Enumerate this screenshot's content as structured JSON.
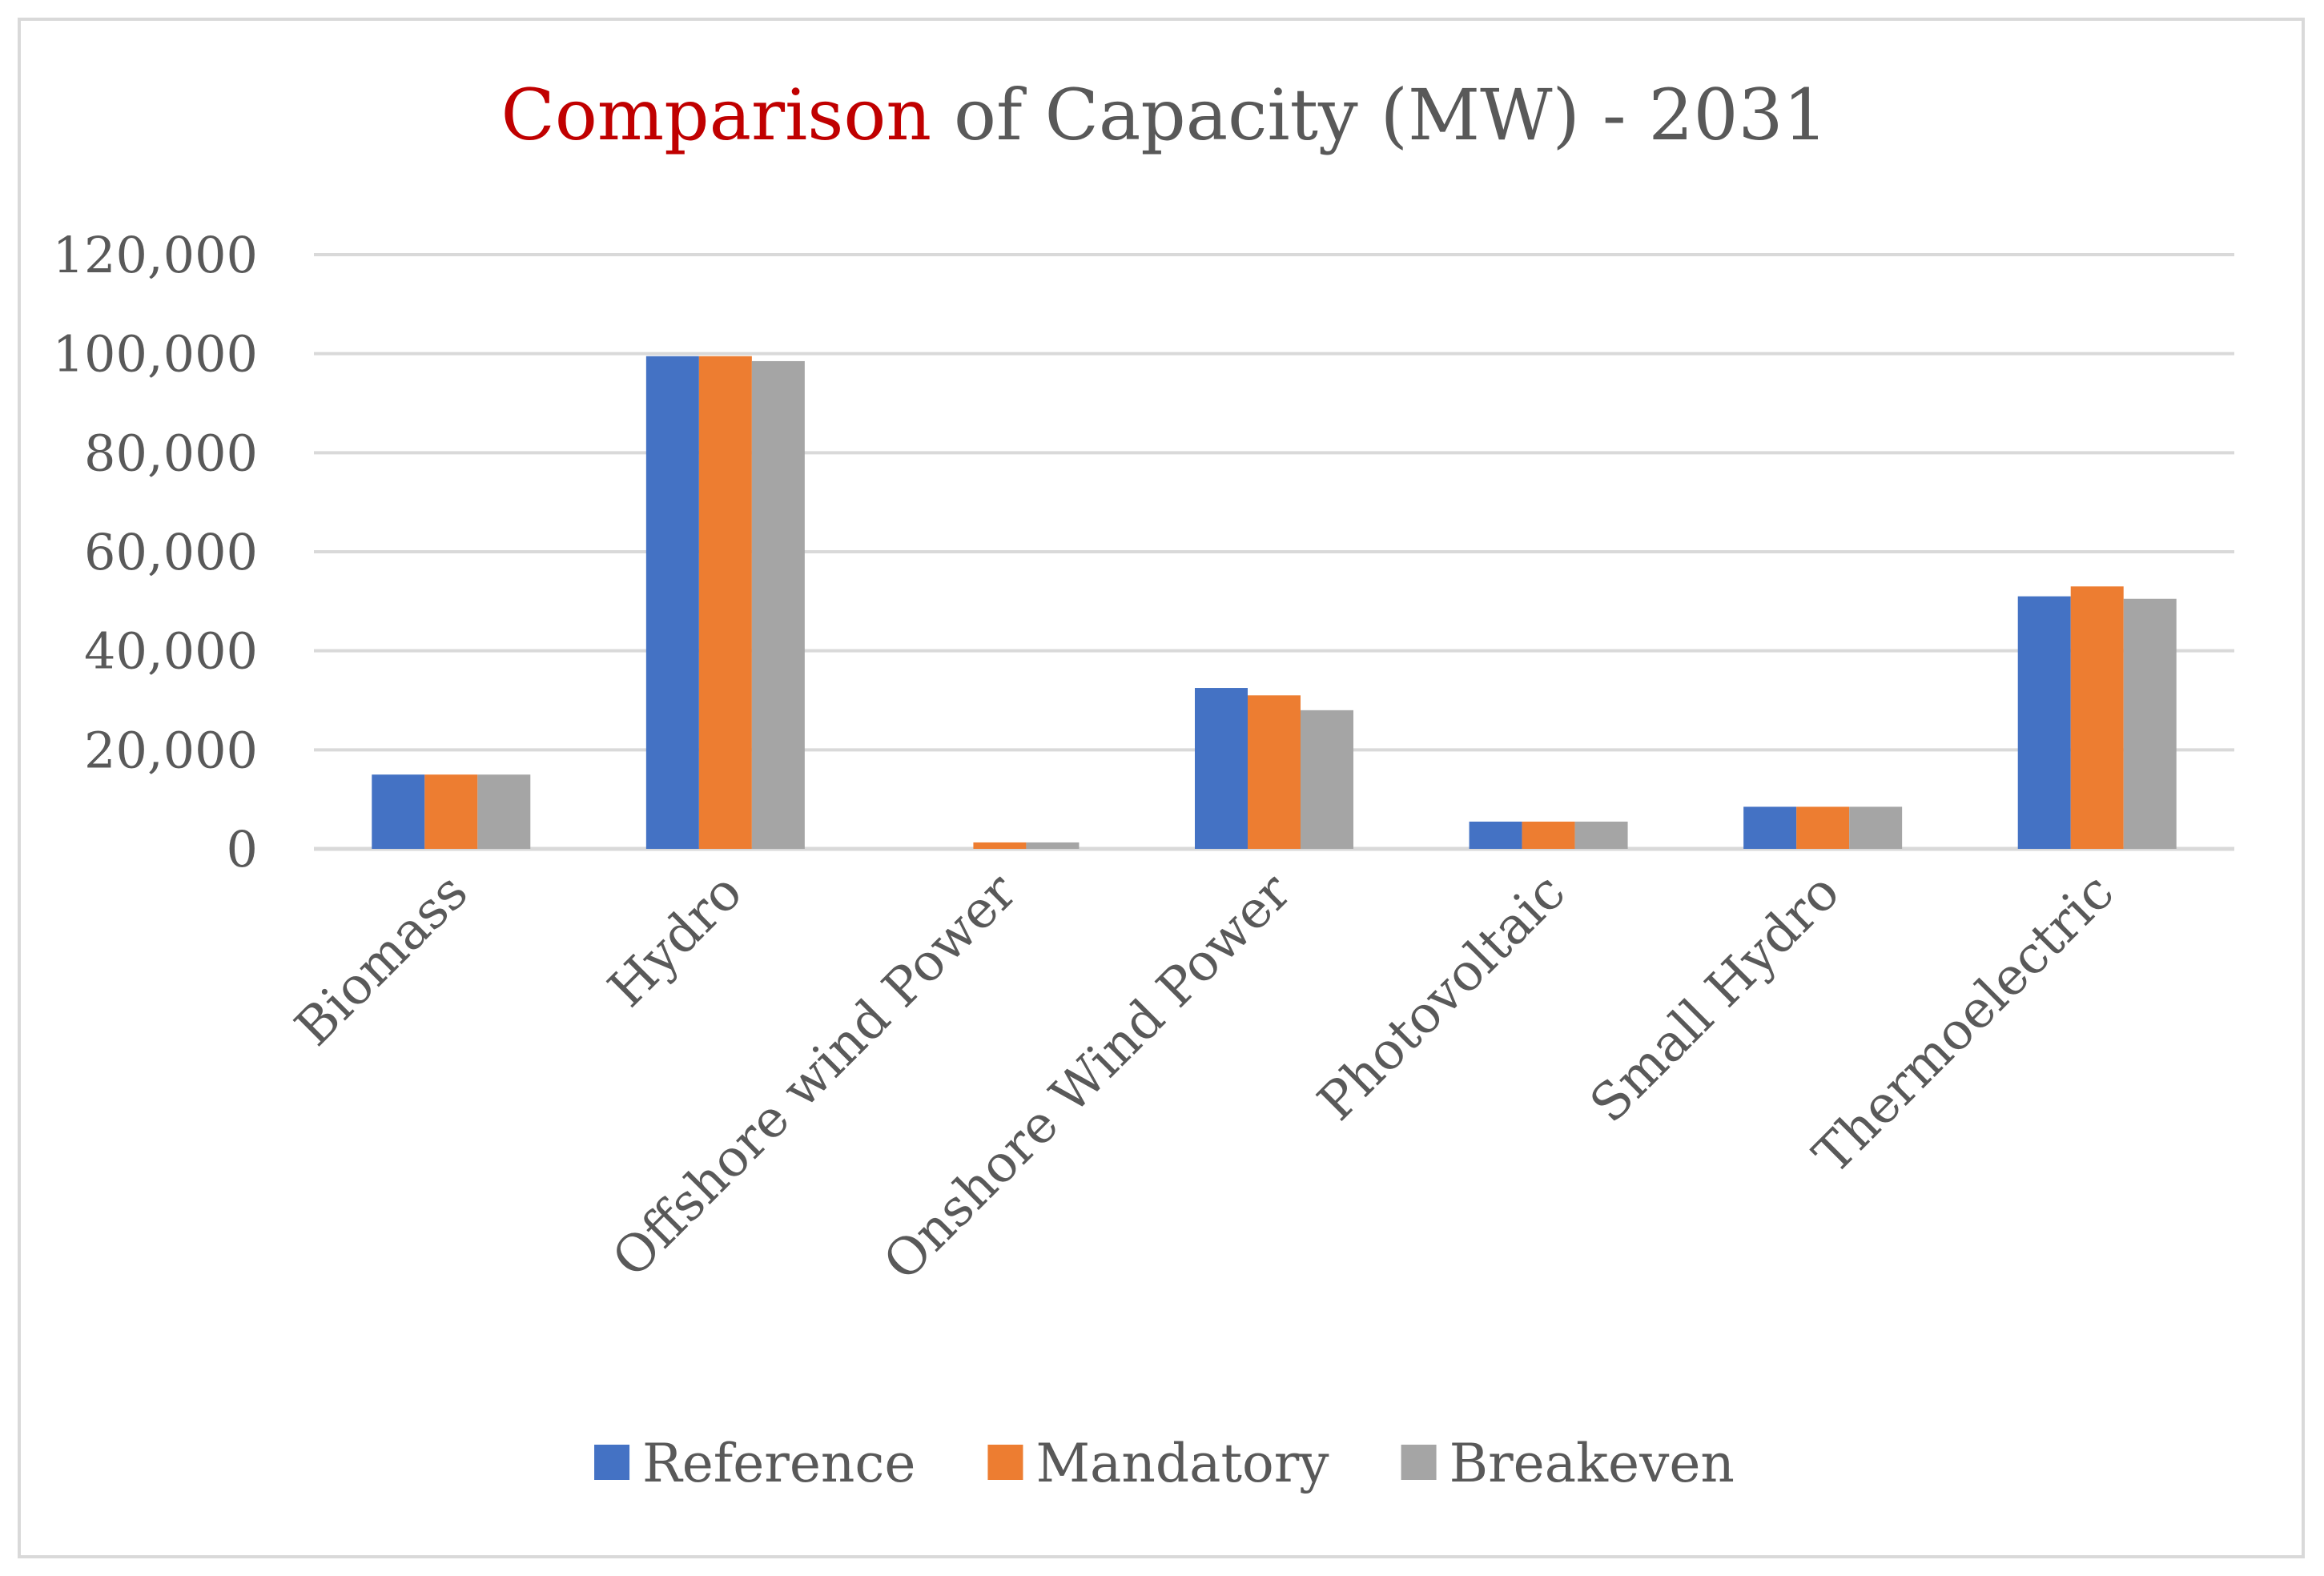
{
  "chart_data": {
    "type": "bar",
    "title_parts": [
      "Comparison",
      " of Capacity (MW) - 2031"
    ],
    "title_colors": [
      "#c00000",
      "#595959"
    ],
    "categories": [
      "Biomass",
      "Hydro",
      "Offshore wind Power",
      "Onshore Wind Power",
      "Photovoltaic",
      "Small Hydro",
      "Thermoelectric"
    ],
    "series": [
      {
        "name": "Reference",
        "color": "#4472c4",
        "values": [
          15000,
          99500,
          0,
          32500,
          5500,
          8500,
          51000
        ]
      },
      {
        "name": "Mandatory",
        "color": "#ed7d31",
        "values": [
          15000,
          99500,
          1300,
          31000,
          5500,
          8500,
          53000
        ]
      },
      {
        "name": "Breakeven",
        "color": "#a5a5a5",
        "values": [
          15000,
          98500,
          1300,
          28000,
          5500,
          8500,
          50500
        ]
      }
    ],
    "yticks": [
      "0",
      "20,000",
      "40,000",
      "60,000",
      "80,000",
      "100,000",
      "120,000"
    ],
    "ylim": [
      0,
      120000
    ],
    "xlabel": "",
    "ylabel": "",
    "grid": true,
    "legend_position": "bottom"
  }
}
